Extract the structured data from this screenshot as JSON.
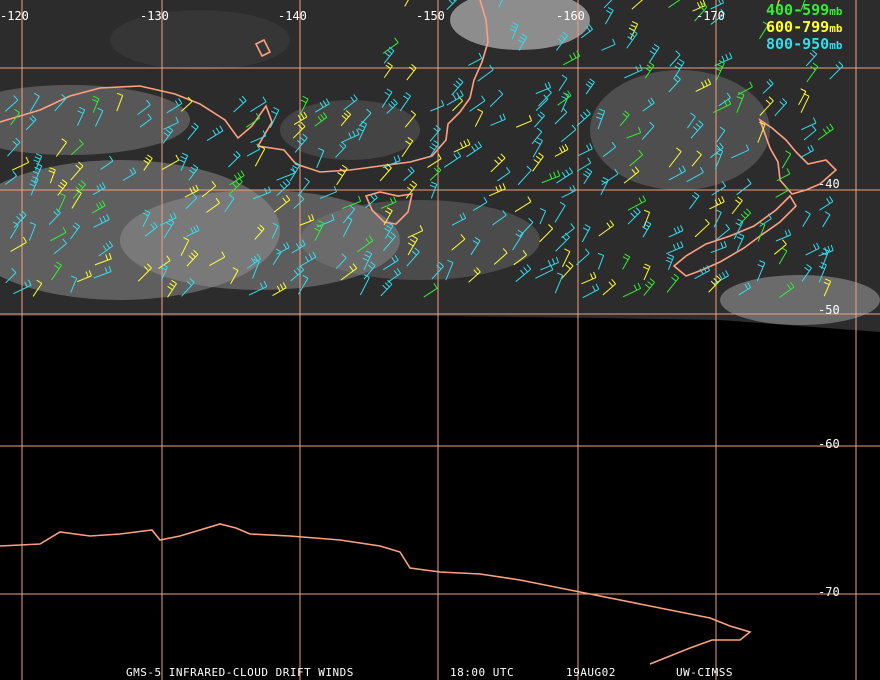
{
  "map": {
    "lon_labels": [
      "-120",
      "-130",
      "-140",
      "-150",
      "-160",
      "-170"
    ],
    "lat_labels": [
      "-40",
      "-50",
      "-60",
      "-70"
    ]
  },
  "legend": {
    "items": [
      {
        "range": "400-599",
        "unit": "mb",
        "color": "#33ee33"
      },
      {
        "range": "600-799",
        "unit": "mb",
        "color": "#ffff33"
      },
      {
        "range": "800-950",
        "unit": "mb",
        "color": "#33ddee"
      }
    ]
  },
  "footer": {
    "product": "GMS-5 INFRARED-CLOUD DRIFT WINDS",
    "time": "18:00 UTC",
    "date": "19AUG02",
    "source": "UW-CIMSS"
  },
  "colors": {
    "grid": "#f0a080",
    "coast": "#ffa080",
    "background": "#000000"
  }
}
